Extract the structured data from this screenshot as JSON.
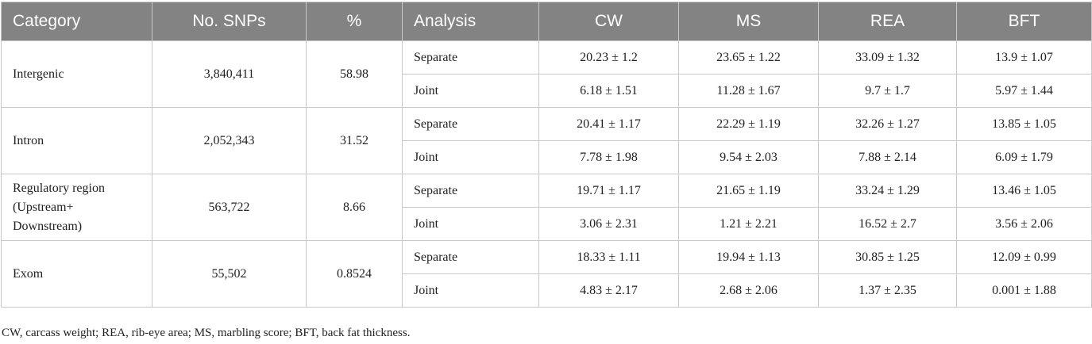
{
  "table": {
    "header": [
      "Category",
      "No. SNPs",
      "%",
      "Analysis",
      "CW",
      "MS",
      "REA",
      "BFT"
    ],
    "groups": [
      {
        "category": "Intergenic",
        "snps": "3,840,411",
        "percent": "58.98",
        "rows": [
          {
            "analysis": "Separate",
            "values": [
              "20.23 ± 1.2",
              "23.65 ± 1.22",
              "33.09 ± 1.32",
              "13.9 ± 1.07"
            ]
          },
          {
            "analysis": "Joint",
            "values": [
              "6.18 ± 1.51",
              "11.28 ± 1.67",
              "9.7 ± 1.7",
              "5.97 ± 1.44"
            ]
          }
        ]
      },
      {
        "category": "Intron",
        "snps": "2,052,343",
        "percent": "31.52",
        "rows": [
          {
            "analysis": "Separate",
            "values": [
              "20.41 ± 1.17",
              "22.29 ± 1.19",
              "32.26 ± 1.27",
              "13.85 ± 1.05"
            ]
          },
          {
            "analysis": "Joint",
            "values": [
              "7.78 ± 1.98",
              "9.54 ± 2.03",
              "7.88 ± 2.14",
              "6.09 ± 1.79"
            ]
          }
        ]
      },
      {
        "category": "Regulatory region\n(Upstream+\nDownstream)",
        "snps": "563,722",
        "percent": "8.66",
        "rows": [
          {
            "analysis": "Separate",
            "values": [
              "19.71 ± 1.17",
              "21.65 ± 1.19",
              "33.24 ± 1.29",
              "13.46 ± 1.05"
            ]
          },
          {
            "analysis": "Joint",
            "values": [
              "3.06 ± 2.31",
              "1.21 ± 2.21",
              "16.52 ± 2.7",
              "3.56 ± 2.06"
            ]
          }
        ]
      },
      {
        "category": "Exom",
        "snps": "55,502",
        "percent": "0.8524",
        "rows": [
          {
            "analysis": "Separate",
            "values": [
              "18.33 ± 1.11",
              "19.94 ± 1.13",
              "30.85 ± 1.25",
              "12.09 ± 0.99"
            ]
          },
          {
            "analysis": "Joint",
            "values": [
              "4.83 ± 2.17",
              "2.68 ± 2.06",
              "1.37 ± 2.35",
              "0.001 ± 1.88"
            ]
          }
        ]
      }
    ],
    "footnote": "CW, carcass weight; REA, rib-eye area; MS, marbling score; BFT, back fat thickness."
  }
}
